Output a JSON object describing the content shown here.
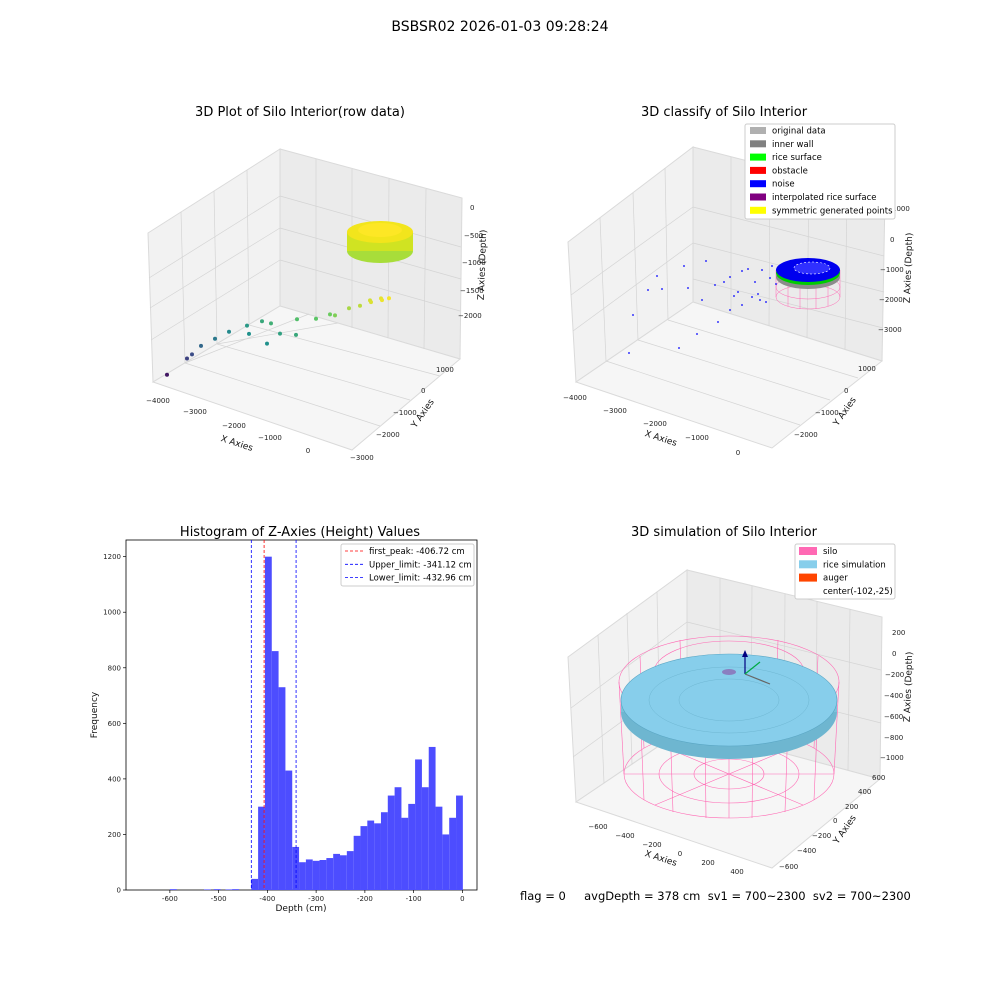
{
  "figure": {
    "suptitle": "BSBSR02 2026-01-03 09:28:24",
    "status_text": "flag = 0     avgDepth = 378 cm  sv1 = 700~2300  sv2 = 700~2300"
  },
  "chart_data": [
    {
      "type": "scatter",
      "projection": "3d",
      "title": "3D Plot of Silo Interior(row data)",
      "xlabel": "X Axies",
      "ylabel": "Y Axies",
      "zlabel": "Z Axies (Depth)",
      "xticks": [
        "−4000",
        "−3000",
        "−2000",
        "−1000",
        "0"
      ],
      "yticks": [
        "1000",
        "0",
        "−1000",
        "−2000",
        "−3000"
      ],
      "zticks": [
        "0",
        "−500",
        "−1000",
        "−1500",
        "−2000"
      ],
      "xlim": [
        -4200,
        500
      ],
      "ylim": [
        -3000,
        1500
      ],
      "zlim": [
        -2300,
        200
      ],
      "colormap": "viridis",
      "points": [
        {
          "x": -3900,
          "y": -1900,
          "z": -1900
        },
        {
          "x": -3700,
          "y": -1500,
          "z": -1700
        },
        {
          "x": -3650,
          "y": -1400,
          "z": -1650
        },
        {
          "x": -3500,
          "y": -1300,
          "z": -1500
        },
        {
          "x": -3300,
          "y": -1100,
          "z": -1400
        },
        {
          "x": -3100,
          "y": -900,
          "z": -1300
        },
        {
          "x": -2800,
          "y": -700,
          "z": -1200
        },
        {
          "x": -2600,
          "y": -900,
          "z": -1250
        },
        {
          "x": -2500,
          "y": -600,
          "z": -1100
        },
        {
          "x": -2200,
          "y": -700,
          "z": -1050
        },
        {
          "x": -2000,
          "y": -1100,
          "z": -1250
        },
        {
          "x": -1900,
          "y": -800,
          "z": -1150
        },
        {
          "x": -1700,
          "y": -500,
          "z": -950
        },
        {
          "x": -1500,
          "y": -800,
          "z": -1100
        },
        {
          "x": -1300,
          "y": -400,
          "z": -900
        },
        {
          "x": -1100,
          "y": -200,
          "z": -850
        },
        {
          "x": -900,
          "y": -300,
          "z": -800
        },
        {
          "x": -700,
          "y": -100,
          "z": -700
        },
        {
          "x": -500,
          "y": 0,
          "z": -650
        },
        {
          "x": -400,
          "y": 200,
          "z": -600
        },
        {
          "x": -300,
          "y": 100,
          "z": -580
        },
        {
          "x": -200,
          "y": 300,
          "z": -560
        },
        {
          "x": -100,
          "y": 200,
          "z": -540
        },
        {
          "x": 0,
          "y": 300,
          "z": -520
        }
      ],
      "surface_cluster": {
        "center_x": -102,
        "center_y": -25,
        "depth": -450,
        "radius": 650
      }
    },
    {
      "type": "scatter",
      "projection": "3d",
      "title": "3D classify of Silo Interior",
      "xlabel": "X Axies",
      "ylabel": "Y Axies",
      "zlabel": "Z Axies (Depth)",
      "xticks": [
        "−4000",
        "−3000",
        "−2000",
        "−1000",
        "0"
      ],
      "yticks": [
        "1000",
        "0",
        "−1000",
        "−2000"
      ],
      "zticks": [
        "1000",
        "0",
        "−1000",
        "−2000",
        "−3000"
      ],
      "legend": {
        "position": "upper right",
        "entries": [
          {
            "label": "original data",
            "color": "#b0b0b0"
          },
          {
            "label": "inner wall",
            "color": "#808080"
          },
          {
            "label": "rice surface",
            "color": "#00ff00"
          },
          {
            "label": "obstacle",
            "color": "#ff0000"
          },
          {
            "label": "noise",
            "color": "#0000ff"
          },
          {
            "label": "interpolated rice surface",
            "color": "#800080"
          },
          {
            "label": "symmetric generated points",
            "color": "#ffff00"
          }
        ]
      }
    },
    {
      "type": "bar",
      "subtype": "histogram",
      "title": "Histogram of Z-Axies (Height) Values",
      "xlabel": "Depth (cm)",
      "ylabel": "Frequency",
      "xlim": [
        -690,
        30
      ],
      "ylim": [
        0,
        1260
      ],
      "xticks": [
        -600,
        -500,
        -400,
        -300,
        -200,
        -100,
        0
      ],
      "yticks": [
        0,
        200,
        400,
        600,
        800,
        1000,
        1200
      ],
      "bar_color": "#4d4dff",
      "bin_width": 14,
      "bins": [
        {
          "x0": -600,
          "count": 3
        },
        {
          "x0": -530,
          "count": 2
        },
        {
          "x0": -510,
          "count": 3
        },
        {
          "x0": -486,
          "count": 2
        },
        {
          "x0": -472,
          "count": 3
        },
        {
          "x0": -433,
          "count": 40
        },
        {
          "x0": -419,
          "count": 300
        },
        {
          "x0": -405,
          "count": 1200
        },
        {
          "x0": -391,
          "count": 860
        },
        {
          "x0": -377,
          "count": 730
        },
        {
          "x0": -363,
          "count": 430
        },
        {
          "x0": -349,
          "count": 155
        },
        {
          "x0": -335,
          "count": 100
        },
        {
          "x0": -321,
          "count": 110
        },
        {
          "x0": -307,
          "count": 105
        },
        {
          "x0": -293,
          "count": 108
        },
        {
          "x0": -279,
          "count": 115
        },
        {
          "x0": -265,
          "count": 130
        },
        {
          "x0": -251,
          "count": 125
        },
        {
          "x0": -237,
          "count": 140
        },
        {
          "x0": -223,
          "count": 195
        },
        {
          "x0": -209,
          "count": 230
        },
        {
          "x0": -195,
          "count": 250
        },
        {
          "x0": -181,
          "count": 240
        },
        {
          "x0": -167,
          "count": 280
        },
        {
          "x0": -153,
          "count": 340
        },
        {
          "x0": -139,
          "count": 370
        },
        {
          "x0": -125,
          "count": 260
        },
        {
          "x0": -111,
          "count": 310
        },
        {
          "x0": -97,
          "count": 470
        },
        {
          "x0": -83,
          "count": 370
        },
        {
          "x0": -69,
          "count": 515
        },
        {
          "x0": -55,
          "count": 300
        },
        {
          "x0": -41,
          "count": 200
        },
        {
          "x0": -27,
          "count": 260
        },
        {
          "x0": -13,
          "count": 340
        }
      ],
      "vlines": [
        {
          "x": -406.72,
          "color": "#ff0000",
          "label": "first_peak: -406.72 cm"
        },
        {
          "x": -341.12,
          "color": "#0000ff",
          "label": "Upper_limit: -341.12 cm"
        },
        {
          "x": -432.96,
          "color": "#0000ff",
          "label": "Lower_limit: -432.96 cm"
        }
      ],
      "legend": {
        "position": "upper right"
      }
    },
    {
      "type": "scatter",
      "projection": "3d",
      "title": "3D simulation of Silo Interior",
      "xlabel": "X Axies",
      "ylabel": "Y Axies",
      "zlabel": "Z Axies (Depth)",
      "xticks": [
        "−600",
        "−400",
        "−200",
        "0",
        "200",
        "400"
      ],
      "yticks": [
        "600",
        "400",
        "200",
        "0",
        "−200",
        "−400",
        "−600"
      ],
      "zticks": [
        "200",
        "0",
        "−200",
        "−400",
        "−600",
        "−800",
        "−1000"
      ],
      "legend": {
        "position": "upper right",
        "entries": [
          {
            "label": "silo",
            "color": "#ff69b4"
          },
          {
            "label": "rice simulation",
            "color": "#87ceeb"
          },
          {
            "label": "auger",
            "color": "#ff4500"
          },
          {
            "label": "center(-102,-25)",
            "color": ""
          }
        ]
      }
    }
  ]
}
